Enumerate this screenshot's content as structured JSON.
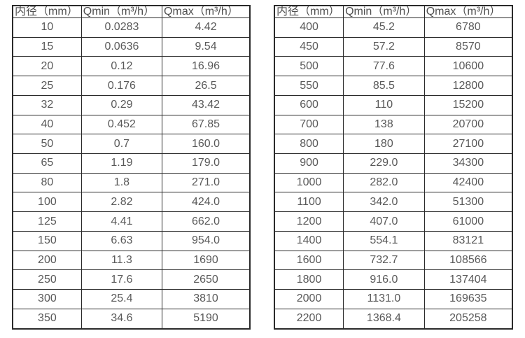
{
  "styles": {
    "background": "#ffffff",
    "border_color": "#2a2a2a",
    "header_text_color": "#4f4f4f",
    "cell_text_color": "#595959"
  },
  "tables": [
    {
      "name": "flow-spec-table-small-diameters",
      "headers": [
        "内径（mm）",
        "Qmin（m³/h）",
        "Qmax（m³/h）"
      ],
      "rows": [
        [
          "10",
          "0.0283",
          "4.42"
        ],
        [
          "15",
          "0.0636",
          "9.54"
        ],
        [
          "20",
          "0.12",
          "16.96"
        ],
        [
          "25",
          "0.176",
          "26.5"
        ],
        [
          "32",
          "0.29",
          "43.42"
        ],
        [
          "40",
          "0.452",
          "67.85"
        ],
        [
          "50",
          "0.7",
          "160.0"
        ],
        [
          "65",
          "1.19",
          "179.0"
        ],
        [
          "80",
          "1.8",
          "271.0"
        ],
        [
          "100",
          "2.82",
          "424.0"
        ],
        [
          "125",
          "4.41",
          "662.0"
        ],
        [
          "150",
          "6.63",
          "954.0"
        ],
        [
          "200",
          "11.3",
          "1690"
        ],
        [
          "250",
          "17.6",
          "2650"
        ],
        [
          "300",
          "25.4",
          "3810"
        ],
        [
          "350",
          "34.6",
          "5190"
        ]
      ]
    },
    {
      "name": "flow-spec-table-large-diameters",
      "headers": [
        "内径（mm）",
        "Qmin（m³/h）",
        "Qmax（m³/h）"
      ],
      "rows": [
        [
          "400",
          "45.2",
          "6780"
        ],
        [
          "450",
          "57.2",
          "8570"
        ],
        [
          "500",
          "77.6",
          "10600"
        ],
        [
          "550",
          "85.5",
          "12800"
        ],
        [
          "600",
          "110",
          "15200"
        ],
        [
          "700",
          "138",
          "20700"
        ],
        [
          "800",
          "180",
          "27100"
        ],
        [
          "900",
          "229.0",
          "34300"
        ],
        [
          "1000",
          "282.0",
          "42400"
        ],
        [
          "1100",
          "342.0",
          "51300"
        ],
        [
          "1200",
          "407.0",
          "61000"
        ],
        [
          "1400",
          "554.1",
          "83121"
        ],
        [
          "1600",
          "732.7",
          "108566"
        ],
        [
          "1800",
          "916.0",
          "137404"
        ],
        [
          "2000",
          "1131.0",
          "169635"
        ],
        [
          "2200",
          "1368.4",
          "205258"
        ]
      ]
    }
  ]
}
